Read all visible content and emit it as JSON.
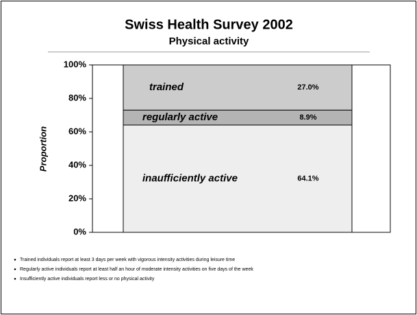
{
  "chart_data": {
    "type": "bar",
    "stacked": true,
    "title": "Swiss Health Survey 2002",
    "subtitle": "Physical activity",
    "y_label": "Proportion",
    "categories": [
      null
    ],
    "series": [
      {
        "name": "inaufficiently active",
        "color": "#eeeeee",
        "values": [
          64.1
        ],
        "value_labels": [
          "64.1%"
        ]
      },
      {
        "name": "regularly active",
        "color": "#b4b4b4",
        "values": [
          8.9
        ],
        "value_labels": [
          "8.9%"
        ]
      },
      {
        "name": "trained",
        "color": "#cccccc",
        "values": [
          27.0
        ],
        "value_labels": [
          "27.0%"
        ]
      }
    ],
    "ylim": [
      0,
      100
    ],
    "yticks": [
      {
        "value": 0,
        "label": "0%"
      },
      {
        "value": 20,
        "label": "20%"
      },
      {
        "value": 40,
        "label": "40%"
      },
      {
        "value": 60,
        "label": "60%"
      },
      {
        "value": 80,
        "label": "80%"
      },
      {
        "value": 100,
        "label": "100%"
      }
    ],
    "grid": false
  },
  "notes": [
    "Trained individuals report at least 3 days per week with vigorous intensity activities during leisure time",
    "Regularly active individuals report at least half an hour of moderate intensity activities on five days of the week",
    "Insufficiently active individuals report less or no physical activity"
  ]
}
